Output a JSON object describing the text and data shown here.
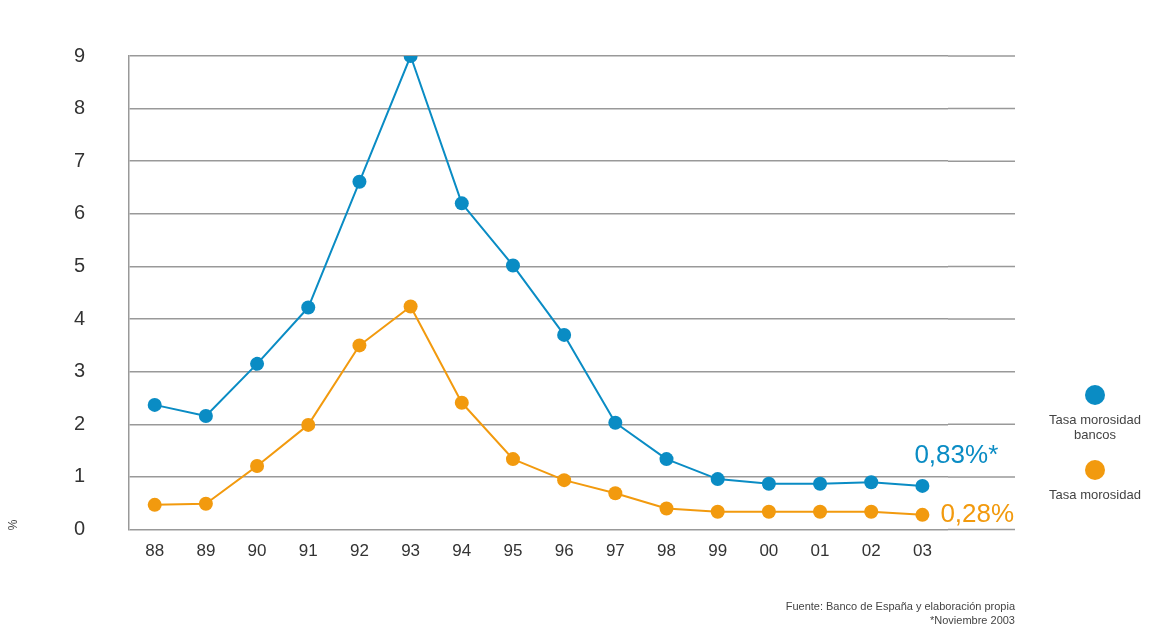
{
  "chart_data": {
    "type": "line",
    "ylabel": "%",
    "categories": [
      "88",
      "89",
      "90",
      "91",
      "92",
      "93",
      "94",
      "95",
      "96",
      "97",
      "98",
      "99",
      "00",
      "01",
      "02",
      "03"
    ],
    "series": [
      {
        "name": "Tasa morosidad bancos",
        "color": "#0a8cc4",
        "values": [
          2.37,
          2.16,
          3.15,
          4.22,
          6.61,
          9.0,
          6.2,
          5.02,
          3.7,
          2.03,
          1.34,
          0.96,
          0.87,
          0.87,
          0.9,
          0.83
        ],
        "value_labels": [
          null,
          null,
          null,
          null,
          null,
          null,
          null,
          null,
          null,
          null,
          null,
          null,
          null,
          null,
          null,
          "0,83%*"
        ]
      },
      {
        "name": "Tasa morosidad",
        "color": "#f29a0e",
        "values": [
          0.47,
          0.49,
          1.21,
          1.99,
          3.5,
          4.24,
          2.41,
          1.34,
          0.94,
          0.69,
          0.4,
          0.34,
          0.34,
          0.34,
          0.34,
          0.28
        ],
        "value_labels": [
          null,
          null,
          null,
          null,
          null,
          null,
          null,
          null,
          null,
          null,
          null,
          null,
          null,
          null,
          null,
          "0,28%"
        ]
      }
    ],
    "ylim": [
      0,
      9
    ],
    "yticks": [
      0,
      1,
      2,
      3,
      4,
      5,
      6,
      7,
      8,
      9
    ],
    "grid": "y",
    "legend": "right",
    "marker": "circle",
    "line_style": "solid",
    "annotations": [
      "Fuente: Banco de España y elaboración propia",
      "*Noviembre 2003"
    ]
  }
}
